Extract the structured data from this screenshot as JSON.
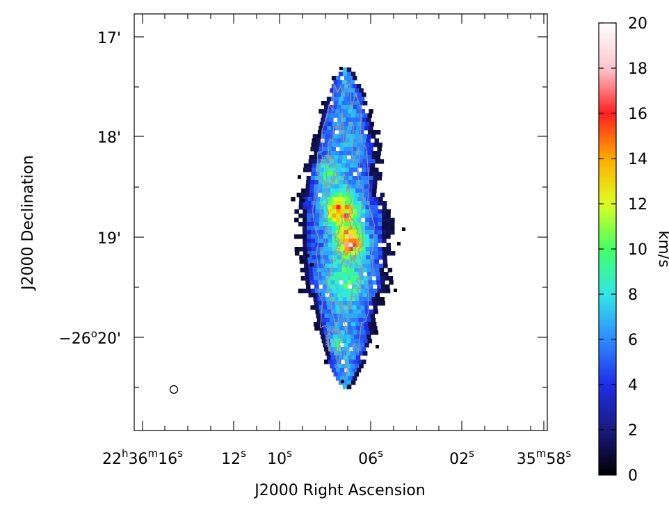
{
  "chart_data": {
    "type": "heatmap",
    "xlabel": "J2000 Right Ascension",
    "ylabel": "J2000 Declination",
    "x_ticks": [
      {
        "label_main": "22",
        "sup1": "h",
        "mid": "36",
        "sup2": "m",
        "tail": "16",
        "sup3": "s",
        "ra_sec": 16
      },
      {
        "label_main": "12",
        "sup1": "s",
        "ra_sec": 12
      },
      {
        "label_main": "10",
        "sup1": "s",
        "ra_sec": 10
      },
      {
        "label_main": "06",
        "sup1": "s",
        "ra_sec": 6
      },
      {
        "label_main": "02",
        "sup1": "s",
        "ra_sec": 2
      },
      {
        "label_main": "35",
        "sup1": "m",
        "mid": "58",
        "sup2": "s",
        "ra_sec": -2
      }
    ],
    "y_ticks": [
      {
        "label": "17'",
        "dec_arcmin": 17
      },
      {
        "label": "18'",
        "dec_arcmin": 18
      },
      {
        "label": "19'",
        "dec_arcmin": 19
      },
      {
        "label_main": "−26",
        "sup": "o",
        "tail": "20'",
        "dec_arcmin": 20
      }
    ],
    "colorbar": {
      "label": "km/s",
      "min": 0,
      "max": 20,
      "ticks": [
        "0",
        "2",
        "4",
        "6",
        "8",
        "10",
        "12",
        "14",
        "16",
        "18",
        "20"
      ],
      "colormap": [
        "#000000",
        "#1a1a80",
        "#1e2ee6",
        "#2f8bff",
        "#33e6e6",
        "#44ff66",
        "#ddff22",
        "#ffaa00",
        "#ff2020",
        "#ffc6cf",
        "#ffffff"
      ]
    },
    "beam": {
      "shape": "circle"
    }
  }
}
